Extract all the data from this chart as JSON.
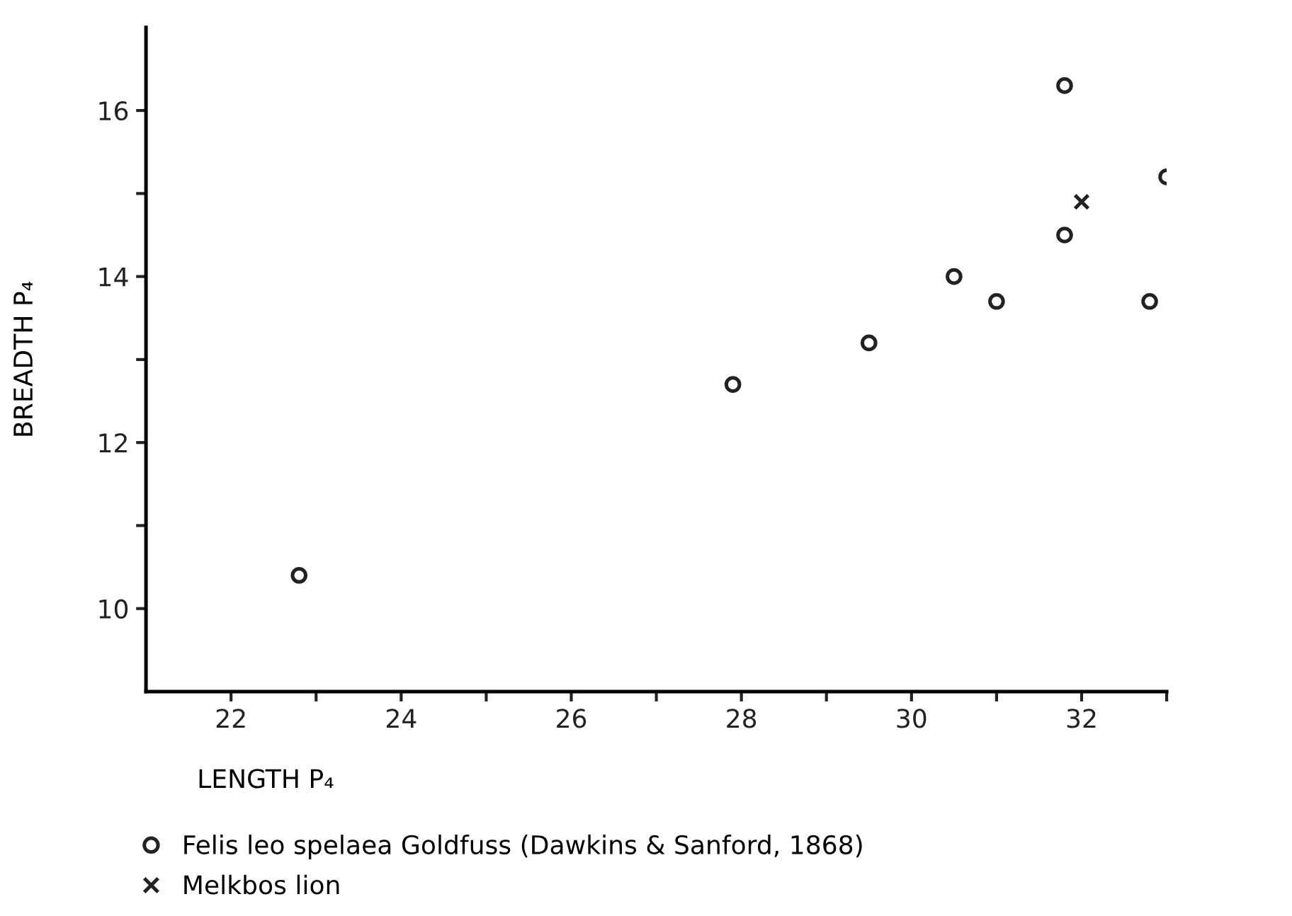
{
  "chart_data": {
    "type": "scatter",
    "xlabel": "LENGTH P₄",
    "ylabel": "BREADTH P₄",
    "xlim": [
      21,
      33
    ],
    "ylim": [
      9,
      17
    ],
    "xticks": [
      22,
      {
        "value": 23,
        "label": null
      },
      24,
      {
        "value": 25,
        "label": null
      },
      26,
      {
        "value": 27,
        "label": null
      },
      28,
      {
        "value": 29,
        "label": null
      },
      30,
      {
        "value": 31,
        "label": null
      },
      32,
      {
        "value": 33,
        "label": null
      }
    ],
    "yticks": [
      10,
      {
        "value": 11,
        "label": null
      },
      12,
      {
        "value": 13,
        "label": null
      },
      14,
      {
        "value": 15,
        "label": null
      },
      16
    ],
    "grid": false,
    "legend": "bottom left",
    "series": [
      {
        "name": "Felis leo spelaea Goldfuss (Dawkins & Sanford, 1868)",
        "color": "#222222",
        "marker": "circle",
        "x": [
          22.8,
          27.9,
          29.5,
          30.5,
          31.0,
          31.8,
          31.8,
          32.8,
          33.0
        ],
        "values": [
          10.4,
          12.7,
          13.2,
          14.0,
          13.7,
          16.3,
          14.5,
          13.7,
          15.2
        ]
      },
      {
        "name": "Melkbos lion",
        "color": "#222222",
        "marker": "cross",
        "x": [
          32.0
        ],
        "values": [
          14.9
        ]
      }
    ]
  }
}
